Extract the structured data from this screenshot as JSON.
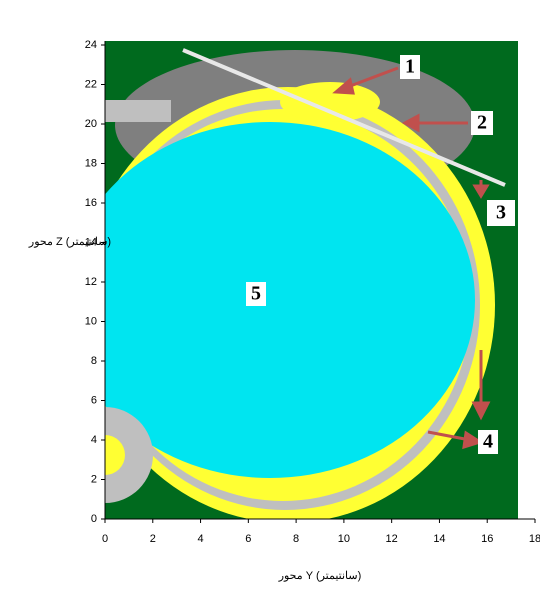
{
  "chart_data": {
    "type": "region",
    "x_label": "محور Y (سانتیمتر)",
    "y_label": "محور Z (سانتیمتر)",
    "xlim": [
      0,
      18
    ],
    "xticks": [
      0,
      2,
      4,
      6,
      8,
      10,
      12,
      14,
      16,
      18
    ],
    "ylim": [
      0,
      24
    ],
    "yticks": [
      0,
      2,
      4,
      6,
      8,
      10,
      12,
      14,
      16,
      18,
      20,
      22,
      24
    ],
    "annotations": [
      "1",
      "2",
      "3",
      "4",
      "5"
    ]
  }
}
